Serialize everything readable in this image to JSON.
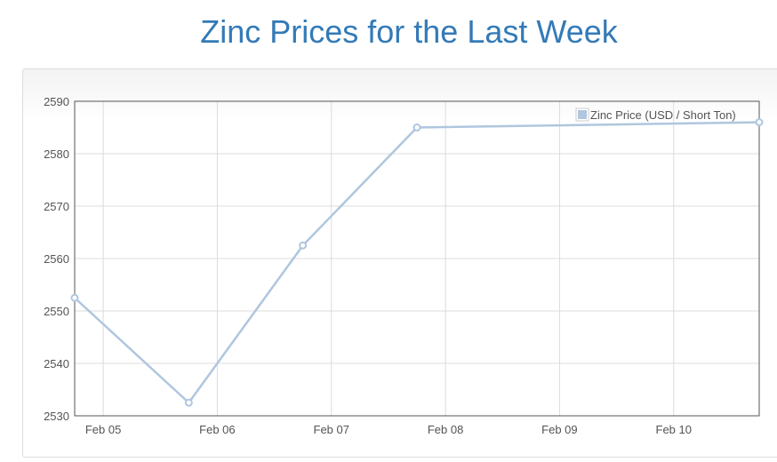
{
  "page": {
    "title": "Zinc Prices for the Last Week"
  },
  "colors": {
    "title": "#337ab7",
    "series": "#afc6de",
    "grid": "#dcdcdc",
    "axis_text": "#545454"
  },
  "chart_data": {
    "type": "line",
    "title": "Zinc Prices for the Last Week",
    "xlabel": "",
    "ylabel": "",
    "x_ticks": [
      "Feb 05",
      "Feb 06",
      "Feb 07",
      "Feb 08",
      "Feb 09",
      "Feb 10"
    ],
    "y_ticks": [
      2530,
      2540,
      2550,
      2560,
      2570,
      2580,
      2590
    ],
    "ylim": [
      2530,
      2590
    ],
    "grid": true,
    "legend_position": "top-right",
    "series": [
      {
        "name": "Zinc Price (USD / Short Ton)",
        "x": [
          "Feb 04 18:00",
          "Feb 05 18:00",
          "Feb 06 18:00",
          "Feb 07 18:00",
          "Feb 10 18:00"
        ],
        "values": [
          2552.5,
          2532.5,
          2562.5,
          2585,
          2586
        ]
      }
    ]
  }
}
